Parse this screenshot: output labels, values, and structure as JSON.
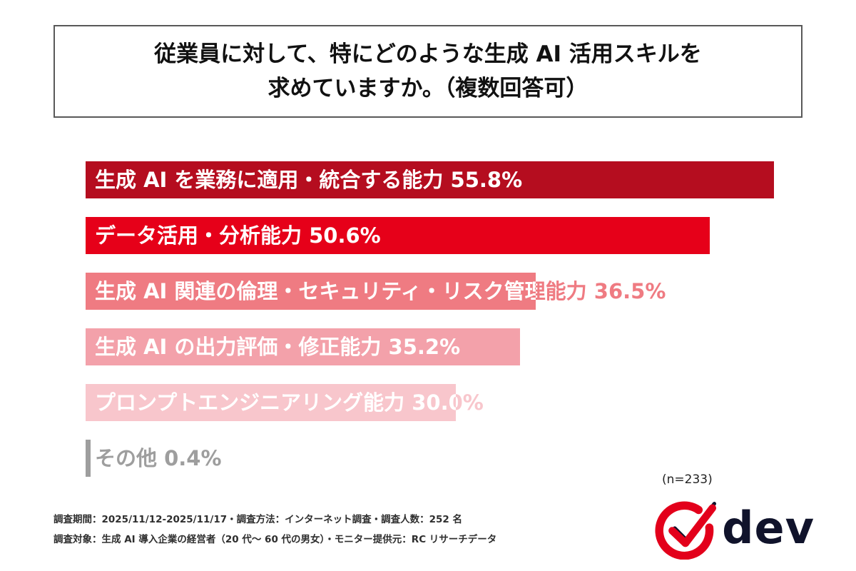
{
  "title": {
    "line1": "従業員に対して、特にどのような生成 AI 活用スキルを",
    "line2": "求めていますか。（複数回答可）"
  },
  "chart_data": {
    "type": "bar",
    "orientation": "horizontal",
    "title": "従業員に対して、特にどのような生成 AI 活用スキルを求めていますか。（複数回答可）",
    "unit": "%",
    "xlim": [
      0,
      58
    ],
    "grid": false,
    "legend": false,
    "categories": [
      "生成 AI を業務に適用・統合する能力",
      "データ活用・分析能力",
      "生成 AI 関連の倫理・セキュリティ・リスク管理能力",
      "生成 AI の出力評価・修正能力",
      "プロンプトエンジニアリング能力",
      "その他"
    ],
    "values": [
      55.8,
      50.6,
      36.5,
      35.2,
      30.0,
      0.4
    ],
    "items": [
      {
        "label": "生成 AI を業務に適用・統合する能力",
        "value": 55.8,
        "display": "55.8%",
        "color": "#b50d1f",
        "text_color": "#ffffff"
      },
      {
        "label": "データ活用・分析能力",
        "value": 50.6,
        "display": "50.6%",
        "color": "#e60019",
        "text_color": "#ffffff"
      },
      {
        "label": "生成 AI 関連の倫理・セキュリティ・リスク管理能力",
        "value": 36.5,
        "display": "36.5%",
        "color": "#ef7b82",
        "text_color": "#ffffff"
      },
      {
        "label": "生成 AI の出力評価・修正能力",
        "value": 35.2,
        "display": "35.2%",
        "color": "#f3a1aa",
        "text_color": "#ffffff"
      },
      {
        "label": "プロンプトエンジニアリング能力",
        "value": 30.0,
        "display": "30.0%",
        "color": "#f8c6cc",
        "text_color": "#ffffff"
      },
      {
        "label": "その他",
        "value": 0.4,
        "display": "0.4%",
        "color": "#9e9e9e",
        "text_color": "#ffffff"
      }
    ],
    "sample_note": "(n=233)"
  },
  "footer": {
    "line1": "調査期間：2025/11/12-2025/11/17・調査方法：インターネット調査・調査人数：252 名",
    "line2": "調査対象：生成 AI 導入企業の経営者（20 代〜 60 代の男女）・モニター提供元：RC リサーチデータ"
  },
  "logo": {
    "text": "dev",
    "accent_color": "#e3001b",
    "text_color": "#10132b"
  }
}
